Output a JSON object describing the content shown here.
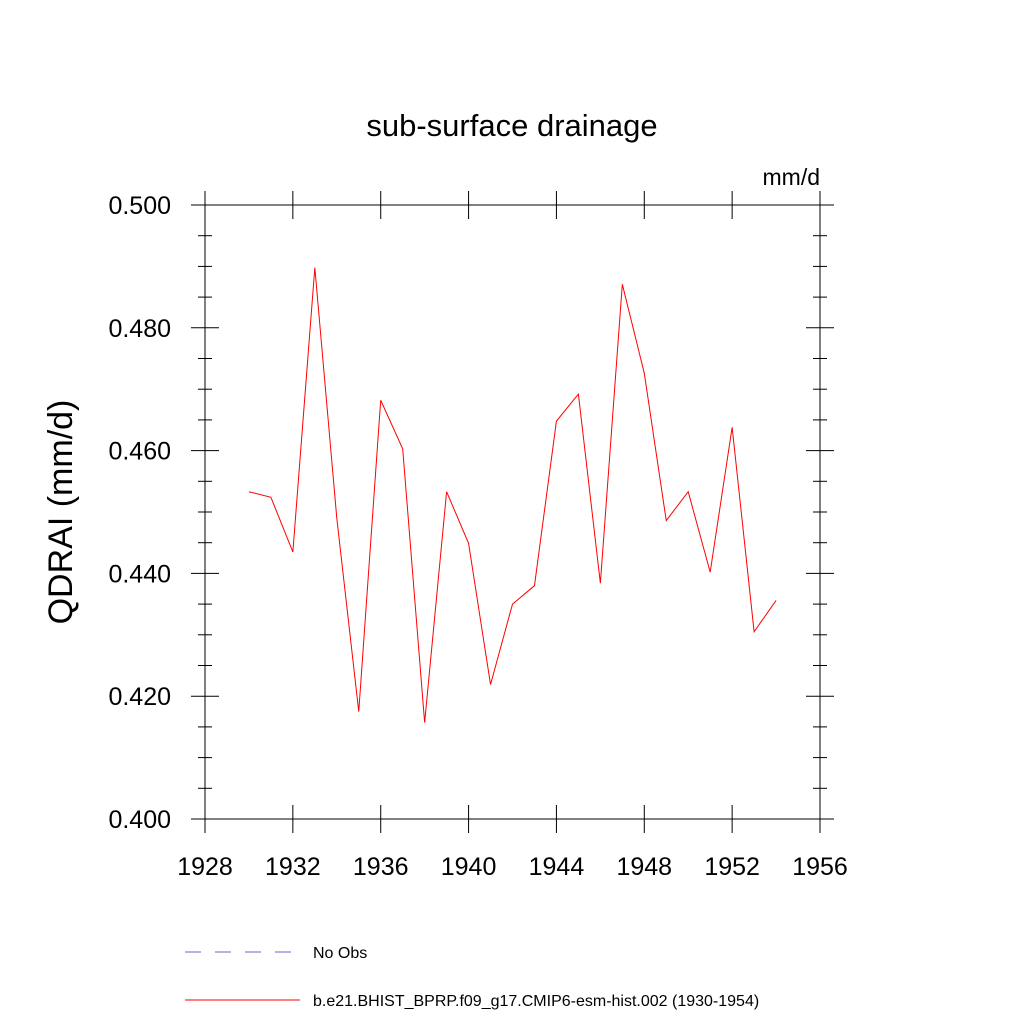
{
  "chart_data": {
    "type": "line",
    "title": "sub-surface drainage",
    "units_label": "mm/d",
    "ylabel": "QDRAI  (mm/d)",
    "xlabel": "",
    "xlim": [
      1928,
      1956
    ],
    "ylim": [
      0.4,
      0.5
    ],
    "x_ticks": [
      "1928",
      "1932",
      "1936",
      "1940",
      "1944",
      "1948",
      "1952",
      "1956"
    ],
    "y_ticks": [
      "0.400",
      "0.420",
      "0.440",
      "0.460",
      "0.480",
      "0.500"
    ],
    "grid": false,
    "legend_position": "bottom",
    "series": [
      {
        "name": "b.e21.BHIST_BPRP.f09_g17.CMIP6-esm-hist.002 (1930-1954)",
        "color": "#ff0000",
        "style": "solid",
        "x": [
          1930,
          1931,
          1932,
          1933,
          1934,
          1935,
          1936,
          1937,
          1938,
          1939,
          1940,
          1941,
          1942,
          1943,
          1944,
          1945,
          1946,
          1947,
          1948,
          1949,
          1950,
          1951,
          1952,
          1953,
          1954
        ],
        "values": [
          0.4533,
          0.4524,
          0.4435,
          0.4898,
          0.449,
          0.4175,
          0.4682,
          0.4603,
          0.4157,
          0.4533,
          0.4449,
          0.4219,
          0.435,
          0.438,
          0.4648,
          0.4692,
          0.4384,
          0.4871,
          0.4726,
          0.4486,
          0.4533,
          0.4402,
          0.4638,
          0.4305,
          0.4356
        ]
      }
    ],
    "legend": [
      {
        "label": "No Obs",
        "color": "#6666cc",
        "style": "dashed"
      },
      {
        "label": "b.e21.BHIST_BPRP.f09_g17.CMIP6-esm-hist.002 (1930-1954)",
        "color": "#ff0000",
        "style": "solid"
      }
    ]
  }
}
